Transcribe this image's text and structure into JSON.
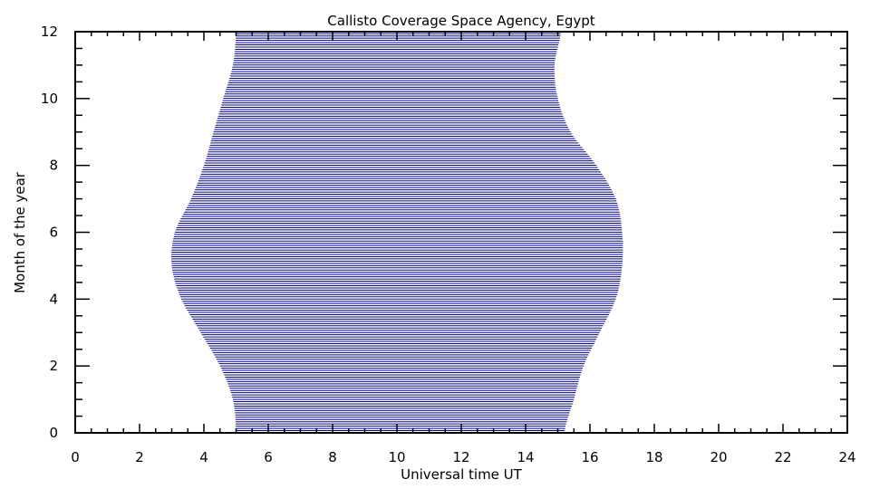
{
  "chart_data": {
    "type": "area",
    "title": "Callisto Coverage Space Agency, Egypt",
    "xlabel": "Universal time UT",
    "ylabel": "Month of the year",
    "xlim": [
      0,
      24
    ],
    "ylim": [
      0,
      12
    ],
    "x_ticks": [
      "0",
      "2",
      "4",
      "6",
      "8",
      "10",
      "12",
      "14",
      "16",
      "18",
      "20",
      "22",
      "24"
    ],
    "y_ticks": [
      "0",
      "2",
      "4",
      "6",
      "8",
      "10",
      "12"
    ],
    "grid": false,
    "fill_style": "horizontal hatch lines",
    "color": "#00008b",
    "series": [
      {
        "month": [
          0,
          1,
          2,
          3,
          4,
          5,
          6,
          7,
          8,
          9,
          10,
          11,
          12
        ],
        "start_ut": [
          5.0,
          4.9,
          4.5,
          3.9,
          3.3,
          3.0,
          3.1,
          3.6,
          4.0,
          4.3,
          4.6,
          4.9,
          5.0
        ],
        "end_ut": [
          15.2,
          15.5,
          15.8,
          16.3,
          16.8,
          17.0,
          17.0,
          16.8,
          16.2,
          15.4,
          15.0,
          14.9,
          15.1
        ]
      }
    ]
  }
}
